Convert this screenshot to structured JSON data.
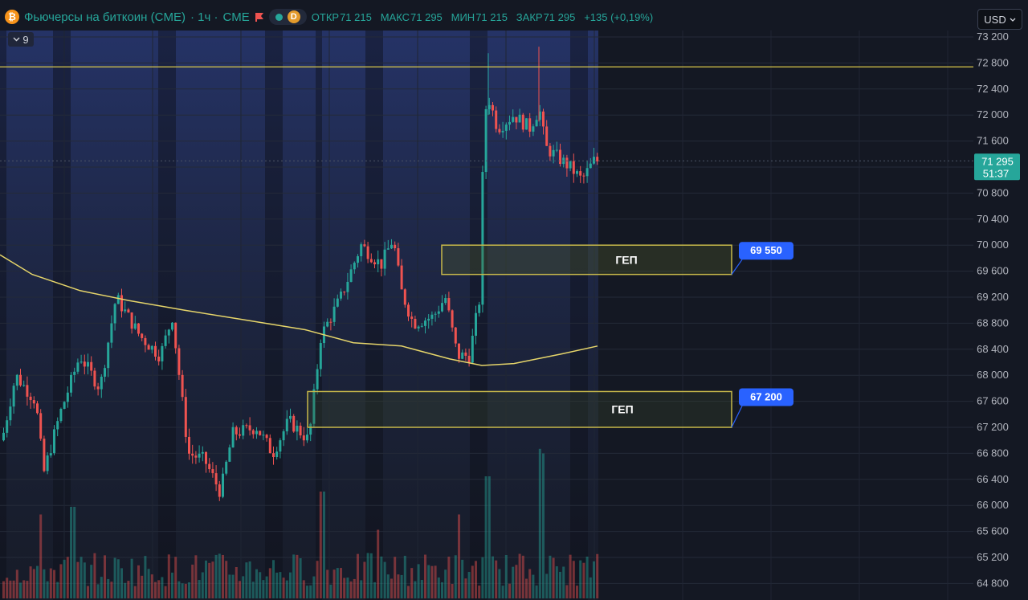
{
  "header": {
    "coin_icon_glyph": "₿",
    "title": "Фьючерсы на биткоин (CME)",
    "interval": " · 1ч · ",
    "exchange": "CME",
    "status_letter": "D",
    "open_label": "ОТКР",
    "open": "71 215",
    "high_label": "МАКС",
    "high": "71 295",
    "low_label": "МИН",
    "low": "71 215",
    "close_label": "ЗАКР",
    "close": "71 295",
    "change": "+135 (+0,19%)"
  },
  "indicators_toggle": {
    "count": "9",
    "icon": "chevron-down-icon"
  },
  "currency_selector": {
    "value": "USD",
    "icon": "chevron-down-icon"
  },
  "colors": {
    "bull": "#26a69a",
    "bear": "#ef5350",
    "ma": "#e6d56a",
    "level": "#d9c74a",
    "gap_border": "#c7b84a",
    "callout": "#2962ff"
  },
  "price_label": {
    "price": "71 295",
    "countdown": "51:37"
  },
  "chart_data": {
    "type": "candlestick",
    "yaxis": {
      "ticks": [
        "73 200",
        "72 800",
        "72 400",
        "72 000",
        "71 600",
        "71 200",
        "70 800",
        "70 400",
        "70 000",
        "69 600",
        "69 200",
        "68 800",
        "68 400",
        "68 000",
        "67 600",
        "67 200",
        "66 800",
        "66 400",
        "66 000",
        "65 600",
        "65 200",
        "64 800"
      ],
      "range": [
        64800,
        73200
      ]
    },
    "horizontal_level": 72740,
    "gaps": [
      {
        "label": "ГЕП",
        "top": 70000,
        "bottom": 69550,
        "callout": "69 550"
      },
      {
        "label": "ГЕП",
        "top": 67750,
        "bottom": 67200,
        "callout": "67 200"
      }
    ],
    "moving_average": [
      [
        0,
        69850
      ],
      [
        40,
        69550
      ],
      [
        100,
        69300
      ],
      [
        160,
        69150
      ],
      [
        230,
        69000
      ],
      [
        300,
        68860
      ],
      [
        380,
        68700
      ],
      [
        440,
        68500
      ],
      [
        500,
        68450
      ],
      [
        560,
        68250
      ],
      [
        600,
        68150
      ],
      [
        640,
        68180
      ],
      [
        700,
        68330
      ],
      [
        744,
        68450
      ]
    ],
    "price_path": [
      [
        3,
        67000
      ],
      [
        20,
        68000
      ],
      [
        45,
        67600
      ],
      [
        55,
        66500
      ],
      [
        75,
        67400
      ],
      [
        100,
        68300
      ],
      [
        125,
        67800
      ],
      [
        145,
        69200
      ],
      [
        175,
        68600
      ],
      [
        200,
        68300
      ],
      [
        215,
        68900
      ],
      [
        235,
        66800
      ],
      [
        255,
        66700
      ],
      [
        275,
        66200
      ],
      [
        290,
        67100
      ],
      [
        320,
        67200
      ],
      [
        340,
        66800
      ],
      [
        360,
        67300
      ],
      [
        385,
        67000
      ],
      [
        400,
        68600
      ],
      [
        425,
        69200
      ],
      [
        450,
        70000
      ],
      [
        475,
        69700
      ],
      [
        490,
        70100
      ],
      [
        500,
        69300
      ],
      [
        515,
        68800
      ],
      [
        540,
        68900
      ],
      [
        555,
        69200
      ],
      [
        570,
        68300
      ],
      [
        585,
        68300
      ],
      [
        598,
        69200
      ],
      [
        603,
        71900
      ],
      [
        608,
        72300
      ],
      [
        620,
        71800
      ],
      [
        640,
        72000
      ],
      [
        660,
        71800
      ],
      [
        672,
        72100
      ],
      [
        680,
        71500
      ],
      [
        700,
        71300
      ],
      [
        710,
        71200
      ],
      [
        725,
        71000
      ],
      [
        740,
        71295
      ]
    ],
    "volume_peaks": [
      [
        50,
        0.55
      ],
      [
        90,
        0.6
      ],
      [
        400,
        0.7
      ],
      [
        470,
        0.45
      ],
      [
        570,
        0.55
      ],
      [
        605,
        0.8
      ],
      [
        670,
        0.98
      ],
      [
        675,
        0.95
      ]
    ]
  }
}
